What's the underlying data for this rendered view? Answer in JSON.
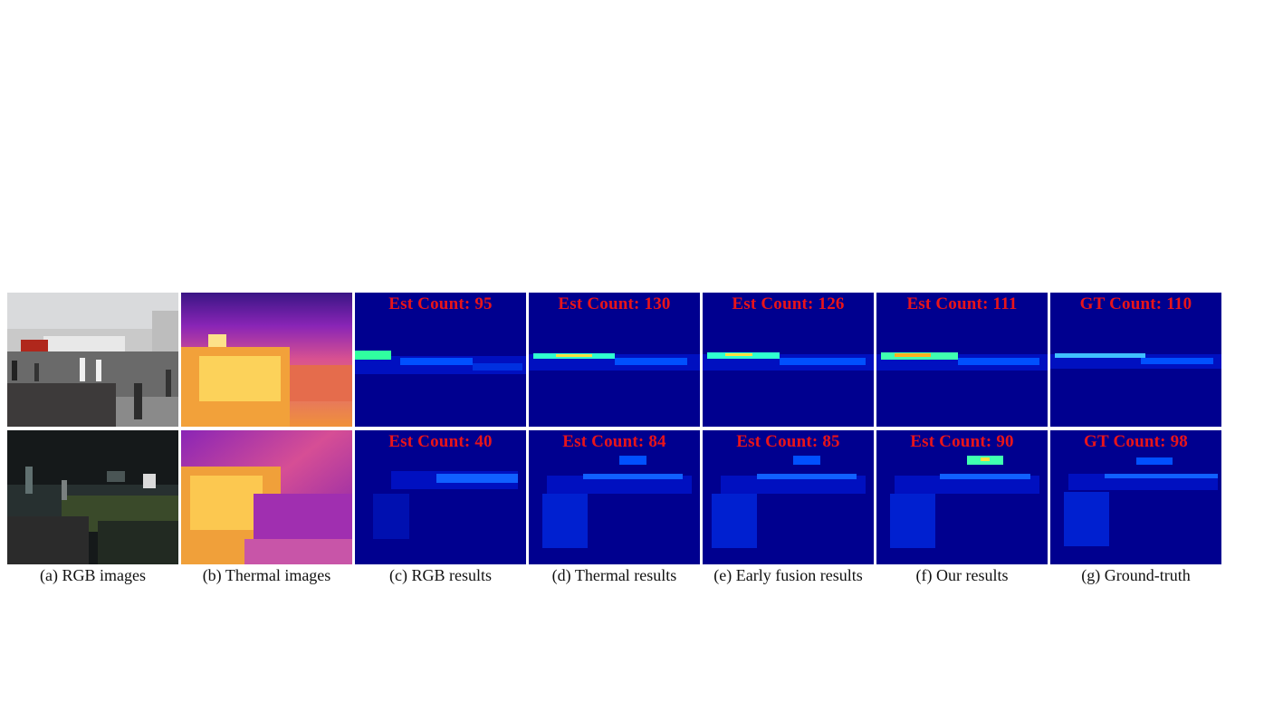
{
  "figure": {
    "columns": [
      {
        "caption": "(a) RGB images"
      },
      {
        "caption": "(b) Thermal images"
      },
      {
        "caption": "(c) RGB results"
      },
      {
        "caption": "(d) Thermal results"
      },
      {
        "caption": "(e) Early fusion results"
      },
      {
        "caption": "(f) Our results"
      },
      {
        "caption": "(g) Ground-truth"
      }
    ],
    "rows": [
      {
        "counts": [
          "Est Count: 95",
          "Est Count: 130",
          "Est Count: 126",
          "Est Count: 111",
          "GT Count: 110"
        ]
      },
      {
        "counts": [
          "Est Count: 40",
          "Est Count: 84",
          "Est Count: 85",
          "Est Count: 90",
          "GT Count: 98"
        ]
      }
    ],
    "colors": {
      "count_text": "#e8141a",
      "density_background": "#00008f",
      "thermal_low": "#6a1ab0",
      "thermal_high": "#ffb020"
    }
  }
}
